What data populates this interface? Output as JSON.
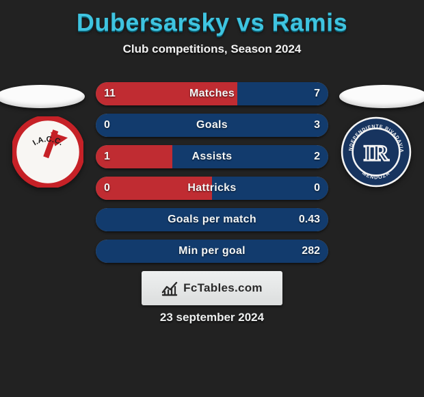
{
  "background_color": "#222222",
  "accent_color": "#3fc4e0",
  "title": "Dubersarsky vs Ramis",
  "subtitle": "Club competitions, Season 2024",
  "brand_text": "FcTables.com",
  "date_text": "23 september 2024",
  "row_bg_color": "#7c7c7c",
  "fill_colors": {
    "left": "#c02c32",
    "right": "#123b6d"
  },
  "stat_rows": [
    {
      "label": "Matches",
      "left_val": "11",
      "right_val": "7",
      "left_pct": 61,
      "right_pct": 39
    },
    {
      "label": "Goals",
      "left_val": "0",
      "right_val": "3",
      "left_pct": 0,
      "right_pct": 100
    },
    {
      "label": "Assists",
      "left_val": "1",
      "right_val": "2",
      "left_pct": 33,
      "right_pct": 67
    },
    {
      "label": "Hattricks",
      "left_val": "0",
      "right_val": "0",
      "left_pct": 50,
      "right_pct": 50
    },
    {
      "label": "Goals per match",
      "left_val": "",
      "right_val": "0.43",
      "left_pct": 0,
      "right_pct": 100
    },
    {
      "label": "Min per goal",
      "left_val": "",
      "right_val": "282",
      "left_pct": 0,
      "right_pct": 100
    }
  ],
  "left_badge": {
    "name": "I.A.C.C.",
    "ring_color": "#c62127",
    "face_color": "#f8f6f3",
    "text_color": "#1c1c1c",
    "stripe_color": "#c62127"
  },
  "right_badge": {
    "name": "Independiente Rivadavia Mendoza",
    "initials": "IR",
    "ring_color": "#17345f",
    "face_color": "#17345f",
    "stroke_color": "#f4f4f4"
  }
}
